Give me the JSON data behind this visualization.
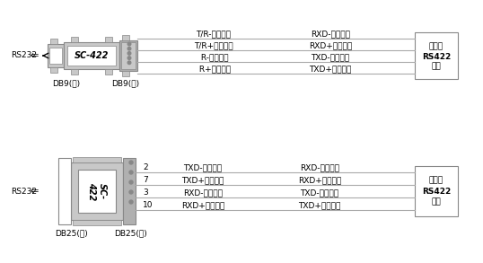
{
  "bg_color": "#ffffff",
  "top_diagram": {
    "rs232_label": "RS232",
    "connector_label": "SC-422",
    "left_connector_label": "DB9(孔)",
    "right_connector_label": "DB9(针)",
    "rows": [
      {
        "left": "T/R-［发送］",
        "right": "RXD-［接收］"
      },
      {
        "left": "T/R+［发送］",
        "right": "RXD+［接收］"
      },
      {
        "left": " R-［接收］",
        "right": "TXD-［发送］"
      },
      {
        "left": " R+［接收］",
        "right": "TXD+［发送］"
      }
    ],
    "box_label_line1": "设备的",
    "box_label_line2": "RS422",
    "box_label_line3": "接口"
  },
  "bottom_diagram": {
    "rs232_label": "RS232",
    "connector_label": "SC-422",
    "left_connector_label": "DB25(孔)",
    "right_connector_label": "DB25(针)",
    "pin_numbers": [
      "2",
      "7",
      "3",
      "10"
    ],
    "rows": [
      {
        "left": "TXD-［发送］",
        "right": "RXD-［接收］"
      },
      {
        "left": "TXD+［发送］",
        "right": "RXD+［接收］"
      },
      {
        "left": "RXD-［接收］",
        "right": "TXD-［发送］"
      },
      {
        "left": "RXD+［接收］",
        "right": "TXD+［发送］"
      }
    ],
    "box_label_line1": "设备的",
    "box_label_line2": "RS422",
    "box_label_line3": "接口"
  },
  "gray_fill": "#c8c8c8",
  "dark_gray": "#888888",
  "light_gray": "#b0b0b0",
  "white": "#ffffff",
  "text_color": "#000000",
  "line_color": "#aaaaaa",
  "fs": 6.5,
  "fs_label": 6.5,
  "fs_connector": 7.0,
  "fs_rs422": 6.5
}
